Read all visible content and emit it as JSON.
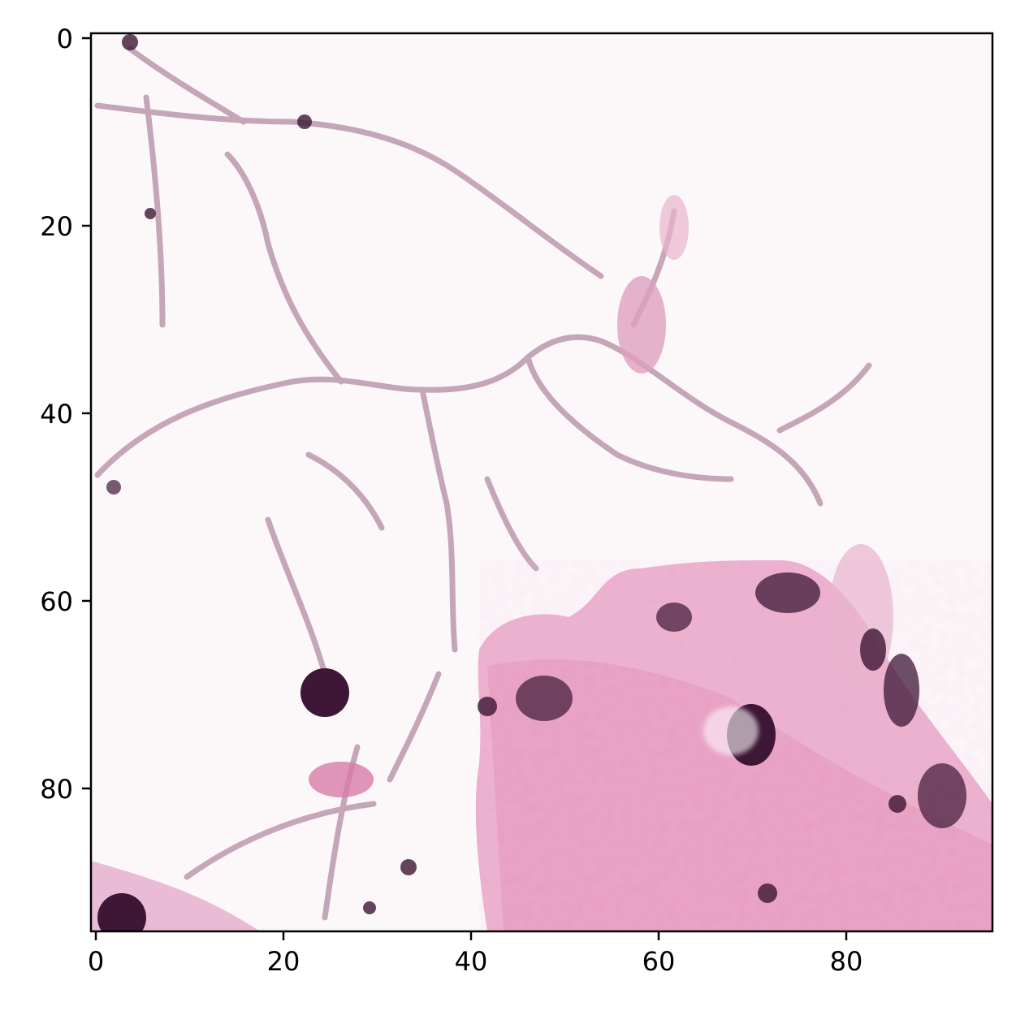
{
  "figure": {
    "kind": "image-display",
    "content": "histology-patch",
    "stain_colors": {
      "background": "#fcf8fa",
      "membrane": "#b891a8",
      "eosin": "#e8a2c4",
      "nucleus": "#3d1735"
    }
  },
  "axes": {
    "x": {
      "range": [
        0,
        95
      ],
      "ticks": [
        "0",
        "20",
        "40",
        "60",
        "80"
      ]
    },
    "y": {
      "range": [
        0,
        95
      ],
      "inverted": true,
      "ticks": [
        "0",
        "20",
        "40",
        "60",
        "80"
      ]
    }
  }
}
